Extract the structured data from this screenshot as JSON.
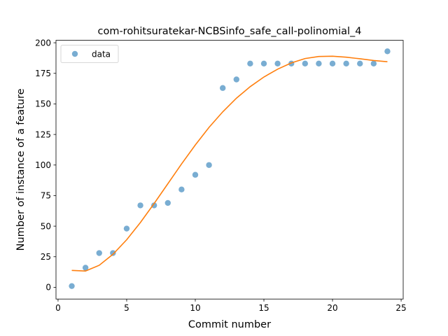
{
  "chart_data": {
    "type": "scatter",
    "title": "com-rohitsuratekar-NCBSinfo_safe_call-polinomial_4",
    "xlabel": "Commit number",
    "ylabel": "Number of instance of a feature",
    "xlim": [
      -0.15,
      25.15
    ],
    "ylim": [
      -9.6,
      202.0
    ],
    "xticks": [
      0,
      5,
      10,
      15,
      20,
      25
    ],
    "yticks": [
      0,
      25,
      50,
      75,
      100,
      125,
      150,
      175,
      200
    ],
    "grid": false,
    "legend": {
      "placement": "top-left",
      "entries": [
        "data"
      ]
    },
    "series": [
      {
        "name": "data",
        "kind": "scatter",
        "color": "#1f77b4",
        "x": [
          1,
          2,
          3,
          4,
          5,
          6,
          7,
          8,
          9,
          10,
          11,
          12,
          13,
          14,
          15,
          16,
          17,
          18,
          19,
          20,
          21,
          22,
          23,
          24
        ],
        "y": [
          1,
          16,
          28,
          28,
          48,
          67,
          67,
          69,
          80,
          92,
          100,
          163,
          170,
          183,
          183,
          183,
          183,
          183,
          183,
          183,
          183,
          183,
          183,
          193
        ]
      },
      {
        "kind": "line",
        "color": "#ff7f0e",
        "x": [
          1,
          2,
          3,
          4,
          5,
          6,
          7,
          8,
          9,
          10,
          11,
          12,
          13,
          14,
          15,
          16,
          17,
          18,
          19,
          20,
          21,
          22,
          23,
          24
        ],
        "y": [
          13.8,
          13.3,
          18.0,
          27.0,
          38.9,
          53.0,
          68.5,
          84.7,
          100.9,
          116.4,
          130.8,
          143.5,
          154.7,
          164.1,
          172.0,
          178.4,
          183.5,
          187.1,
          188.8,
          189.0,
          188.2,
          186.9,
          185.5,
          184.5
        ]
      }
    ]
  }
}
